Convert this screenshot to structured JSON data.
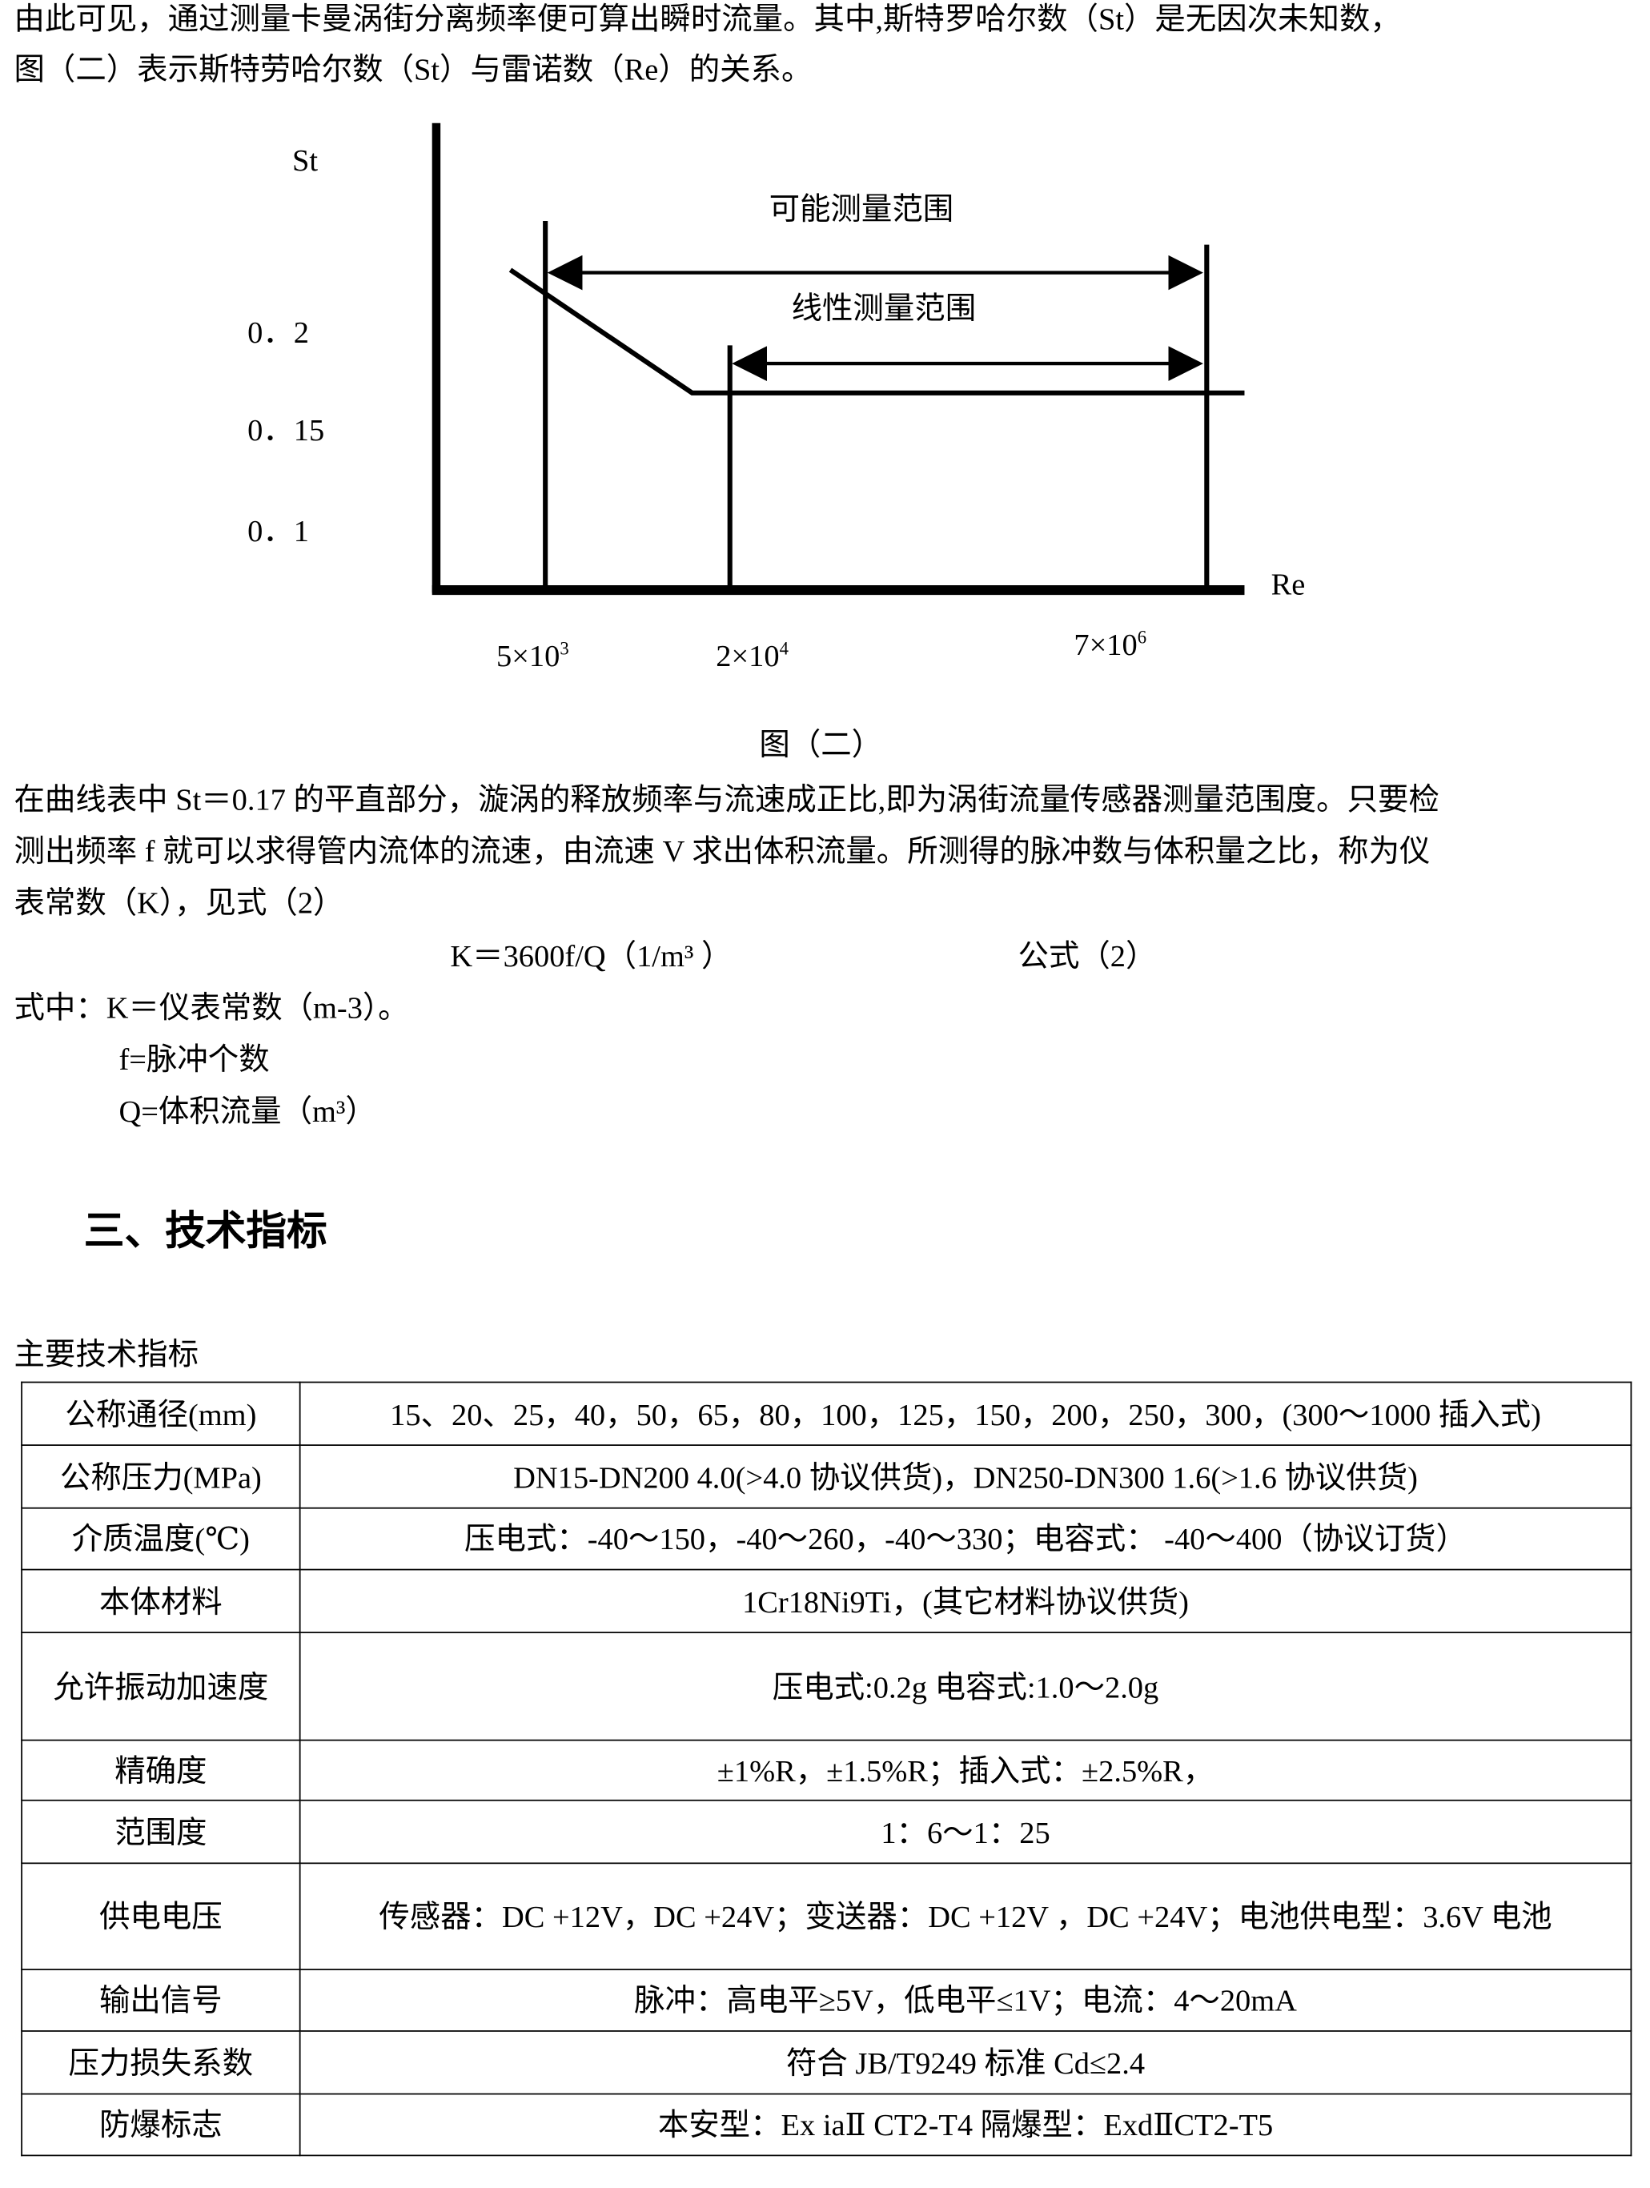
{
  "intro": [
    "由此可见，通过测量卡曼涡街分离频率便可算出瞬时流量。其中,斯特罗哈尔数（St）是无因次未知数，",
    "图（二）表示斯特劳哈尔数（St）与雷诺数（Re）的关系。"
  ],
  "figure": {
    "y_label": "St",
    "x_label": "Re",
    "y_ticks": [
      "0．2",
      "0．15",
      "0．1"
    ],
    "x_ticks": [
      {
        "base": "5×10",
        "exp": "3"
      },
      {
        "base": "2×10",
        "exp": "4"
      },
      {
        "base": "7×10",
        "exp": "6"
      }
    ],
    "range_possible": "可能测量范围",
    "range_linear": "线性测量范围",
    "caption": "图（二）"
  },
  "body": [
    "在曲线表中 St＝0.17 的平直部分，漩涡的释放频率与流速成正比,即为涡街流量传感器测量范围度。只要检",
    "测出频率 f 就可以求得管内流体的流速，由流速 V 求出体积流量。所测得的脉冲数与体积量之比，称为仪",
    "表常数（K），见式（2）"
  ],
  "formula": "K＝3600f/Q（1/m³ ）",
  "formula_label": "公式（2）",
  "where": [
    "式中：K＝仪表常数（m-3）。",
    "f=脉冲个数",
    "Q=体积流量（m³）"
  ],
  "section_heading": "三、技术指标",
  "table_title": "主要技术指标",
  "table": [
    [
      "公称通径(mm)",
      "15、20、25，40，50，65，80，100，125，150，200，250，300，(300～1000 插入式)"
    ],
    [
      "公称压力(MPa)",
      "DN15-DN200 4.0(>4.0 协议供货)，DN250-DN300 1.6(>1.6 协议供货)"
    ],
    [
      "介质温度(℃)",
      "压电式：-40～150，-40～260，-40～330；电容式：  -40～400（协议订货）"
    ],
    [
      "本体材料",
      "1Cr18Ni9Ti，(其它材料协议供货)"
    ],
    [
      "允许振动加速度",
      "压电式:0.2g          电容式:1.0～2.0g"
    ],
    [
      "精确度",
      "±1%R，±1.5%R；插入式：±2.5%R，"
    ],
    [
      "范围度",
      "1：6～1：25"
    ],
    [
      "供电电压",
      "传感器：DC +12V，DC +24V；变送器：DC +12V ，DC +24V；电池供电型：3.6V 电池"
    ],
    [
      "输出信号",
      "脉冲：高电平≥5V，低电平≤1V；电流：4～20mA"
    ],
    [
      "压力损失系数",
      "符合 JB/T9249 标准    Cd≤2.4"
    ],
    [
      "防爆标志",
      "本安型：Ex iaⅡ CT2-T4 隔爆型：ExdⅡCT2-T5"
    ]
  ]
}
